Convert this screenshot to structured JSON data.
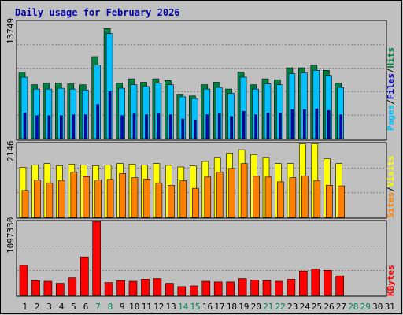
{
  "chart_data": [
    {
      "type": "bar",
      "title": "Daily usage for February 2026",
      "ymax_label": "13749",
      "ylim": [
        0,
        13749
      ],
      "categories": [
        "1",
        "2",
        "3",
        "4",
        "5",
        "6",
        "7",
        "8",
        "9",
        "10",
        "11",
        "12",
        "13",
        "14",
        "15",
        "16",
        "17",
        "18",
        "19",
        "20",
        "21",
        "22",
        "23",
        "24",
        "25",
        "26",
        "27",
        "28",
        "29",
        "30",
        "31"
      ],
      "weekend_days": [
        "7",
        "8",
        "14",
        "15",
        "21",
        "22",
        "28",
        "29"
      ],
      "series": [
        {
          "name": "Hits",
          "color": "#008040",
          "values": [
            7800,
            6300,
            6500,
            6500,
            6400,
            6300,
            9600,
            12900,
            6500,
            7000,
            6600,
            7000,
            6800,
            5200,
            5000,
            6300,
            6600,
            5800,
            7800,
            6300,
            7000,
            6900,
            8300,
            8300,
            8600,
            8000,
            6500,
            null,
            null,
            null,
            null
          ]
        },
        {
          "name": "Files",
          "color": "#00c0ff",
          "values": [
            7200,
            5800,
            5800,
            5900,
            5800,
            5700,
            8600,
            12300,
            5900,
            6300,
            6100,
            6500,
            6300,
            4900,
            4700,
            5800,
            6000,
            5300,
            7200,
            5800,
            6400,
            6300,
            7600,
            7700,
            8000,
            7400,
            6000,
            null,
            null,
            null,
            null
          ]
        },
        {
          "name": "Pages",
          "color": "#0000c0",
          "values": [
            3000,
            2700,
            2700,
            2700,
            2800,
            2800,
            4000,
            5500,
            2700,
            2900,
            2800,
            2900,
            2800,
            2300,
            2200,
            2800,
            2900,
            2600,
            3200,
            2800,
            3000,
            3000,
            3400,
            3400,
            3500,
            3300,
            2800,
            null,
            null,
            null,
            null
          ]
        }
      ]
    },
    {
      "type": "bar",
      "ymax_label": "2146",
      "ylim": [
        0,
        2146
      ],
      "categories": [
        "1",
        "2",
        "3",
        "4",
        "5",
        "6",
        "7",
        "8",
        "9",
        "10",
        "11",
        "12",
        "13",
        "14",
        "15",
        "16",
        "17",
        "18",
        "19",
        "20",
        "21",
        "22",
        "23",
        "24",
        "25",
        "26",
        "27",
        "28",
        "29",
        "30",
        "31"
      ],
      "series": [
        {
          "name": "Visits",
          "color": "#ffff00",
          "values": [
            1450,
            1520,
            1560,
            1500,
            1540,
            1520,
            1500,
            1520,
            1560,
            1540,
            1520,
            1560,
            1510,
            1460,
            1490,
            1620,
            1740,
            1860,
            1960,
            1820,
            1740,
            1560,
            1560,
            2130,
            2140,
            1700,
            1560,
            null,
            null,
            null,
            null
          ]
        },
        {
          "name": "Sites",
          "color": "#ff8000",
          "values": [
            780,
            1080,
            1000,
            1070,
            1310,
            1180,
            1080,
            1100,
            1270,
            1150,
            1110,
            1000,
            930,
            1060,
            840,
            1170,
            1310,
            1420,
            1560,
            1190,
            1170,
            1030,
            1150,
            1200,
            1070,
            930,
            910,
            null,
            null,
            null,
            null
          ]
        }
      ]
    },
    {
      "type": "bar",
      "ymax_label": "1097330",
      "ylim": [
        0,
        1097330
      ],
      "categories": [
        "1",
        "2",
        "3",
        "4",
        "5",
        "6",
        "7",
        "8",
        "9",
        "10",
        "11",
        "12",
        "13",
        "14",
        "15",
        "16",
        "17",
        "18",
        "19",
        "20",
        "21",
        "22",
        "23",
        "24",
        "25",
        "26",
        "27",
        "28",
        "29",
        "30",
        "31"
      ],
      "series": [
        {
          "name": "KBytes",
          "color": "#ff0000",
          "values": [
            450000,
            220000,
            210000,
            180000,
            260000,
            570000,
            1097330,
            190000,
            220000,
            210000,
            240000,
            250000,
            180000,
            130000,
            140000,
            210000,
            200000,
            200000,
            250000,
            230000,
            220000,
            210000,
            240000,
            360000,
            390000,
            370000,
            290000,
            null,
            null,
            null,
            null
          ]
        }
      ]
    }
  ],
  "legend_labels": {
    "panel1": [
      "Pages",
      "/",
      "Files",
      "/",
      "Hits"
    ],
    "panel2": [
      "Sites",
      "/",
      "Visits"
    ],
    "panel3": [
      "KBytes"
    ]
  }
}
